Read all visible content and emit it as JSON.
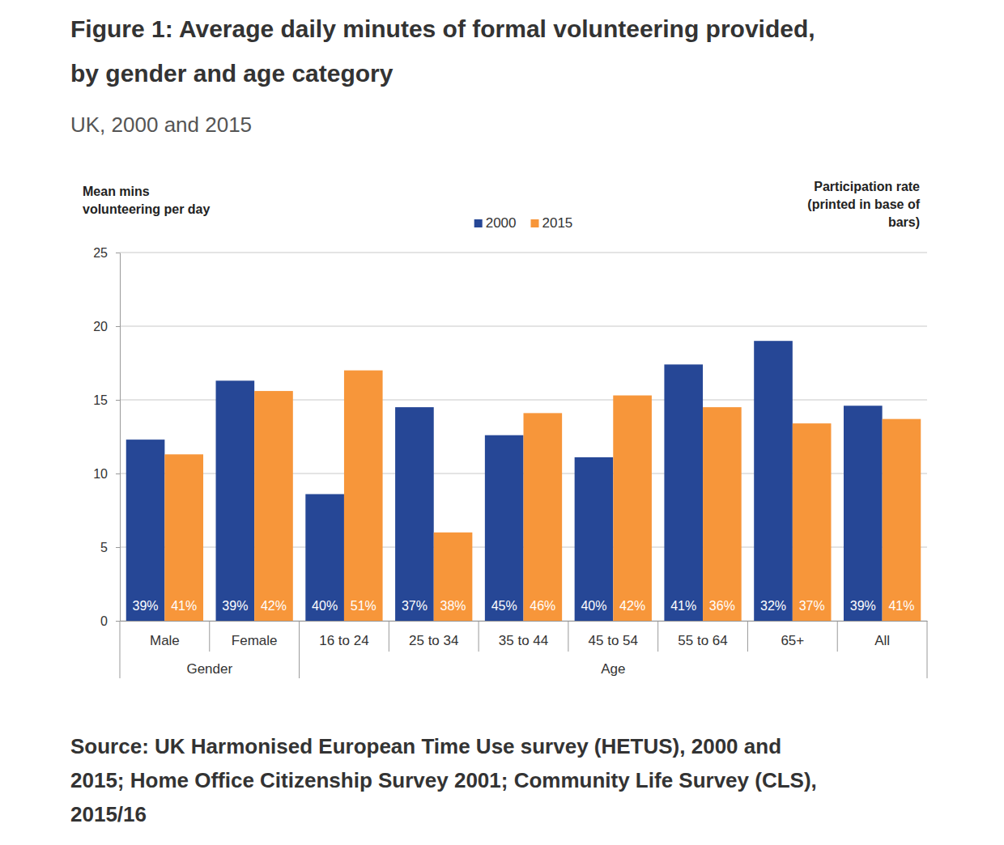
{
  "chart_data": {
    "type": "bar",
    "title": [
      "Figure 1: Average daily minutes of formal volunteering provided,",
      "by gender and age category"
    ],
    "subtitle": "UK, 2000 and 2015",
    "y_label": [
      "Mean mins",
      "volunteering per day"
    ],
    "annotation": [
      "Participation rate",
      "(printed in base of",
      "bars)"
    ],
    "categories": [
      "Male",
      "Female",
      "16 to 24",
      "25 to 34",
      "35 to 44",
      "45 to 54",
      "55 to 64",
      "65+",
      "All"
    ],
    "groups": [
      {
        "label": "Gender",
        "categories": [
          "Male",
          "Female"
        ]
      },
      {
        "label": "Age",
        "categories": [
          "16 to 24",
          "25 to 34",
          "35 to 44",
          "45 to 54",
          "55 to 64",
          "65+",
          "All"
        ]
      }
    ],
    "series": [
      {
        "name": "2000",
        "color": "#264796",
        "values": [
          12.3,
          16.3,
          8.6,
          14.5,
          12.6,
          11.1,
          17.4,
          19.0,
          14.6
        ],
        "participation": [
          39,
          39,
          40,
          37,
          45,
          40,
          41,
          32,
          39
        ],
        "participation_labels": [
          "39%",
          "39%",
          "40%",
          "37%",
          "45%",
          "40%",
          "41%",
          "32%",
          "39%"
        ]
      },
      {
        "name": "2015",
        "color": "#f7963a",
        "values": [
          11.3,
          15.6,
          17.0,
          6.0,
          14.1,
          15.3,
          14.5,
          13.4,
          13.7
        ],
        "participation": [
          41,
          42,
          51,
          38,
          46,
          42,
          36,
          37,
          41
        ],
        "participation_labels": [
          "41%",
          "42%",
          "51%",
          "38%",
          "46%",
          "42%",
          "36%",
          "37%",
          "41%"
        ]
      }
    ],
    "ylim": [
      0,
      25
    ],
    "yticks": [
      0,
      5,
      10,
      15,
      20,
      25
    ],
    "grid": true,
    "legend": "top",
    "source": [
      "Source: UK Harmonised European Time Use survey (HETUS), 2000 and",
      "2015; Home Office Citizenship Survey 2001; Community Life Survey (CLS),",
      "2015/16"
    ]
  }
}
